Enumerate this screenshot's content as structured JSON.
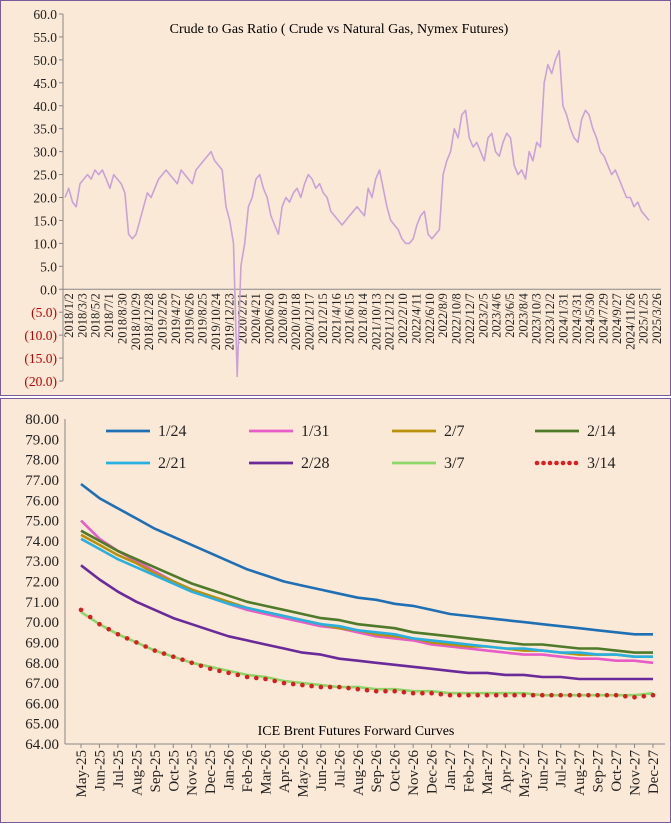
{
  "chart_data": [
    {
      "type": "line",
      "title": "Crude to Gas Ratio ( Crude vs Natural Gas, Nymex Futures)",
      "xlabel": "",
      "ylabel": "",
      "ylim": [
        -20,
        60
      ],
      "yticks": [
        "60.0",
        "55.0",
        "50.0",
        "45.0",
        "40.0",
        "35.0",
        "30.0",
        "25.0",
        "20.0",
        "15.0",
        "10.0",
        "5.0",
        "0.0",
        "(5.0)",
        "(10.0)",
        "(15.0)",
        "(20.0)"
      ],
      "ytick_values": [
        60,
        55,
        50,
        45,
        40,
        35,
        30,
        25,
        20,
        15,
        10,
        5,
        0,
        -5,
        -10,
        -15,
        -20
      ],
      "negative_tick_color": "#c00000",
      "line_color": "#c8a2d8",
      "grid": false,
      "x_ticks": [
        "2018/1/2",
        "2018/3/3",
        "2018/5/2",
        "2018/7/1",
        "2018/8/30",
        "2018/10/29",
        "2018/12/28",
        "2019/2/26",
        "2019/4/27",
        "2019/6/26",
        "2019/8/25",
        "2019/10/24",
        "2019/12/23",
        "2020/2/21",
        "2020/4/21",
        "2020/6/20",
        "2020/8/19",
        "2020/10/18",
        "2020/12/17",
        "2021/2/15",
        "2021/4/16",
        "2021/6/15",
        "2021/8/14",
        "2021/10/13",
        "2021/12/12",
        "2022/2/10",
        "2022/4/11",
        "2022/6/10",
        "2022/8/9",
        "2022/10/8",
        "2022/12/7",
        "2023/2/5",
        "2023/4/6",
        "2023/6/5",
        "2023/8/4",
        "2023/10/3",
        "2023/12/2",
        "2024/1/31",
        "2024/3/31",
        "2024/5/30",
        "2024/7/29",
        "2024/9/27",
        "2024/11/26",
        "2025/1/25",
        "2025/3/26"
      ],
      "series": [
        {
          "values": [
            20,
            22,
            19,
            18,
            23,
            24,
            25,
            24,
            26,
            25,
            26,
            24,
            22,
            25,
            24,
            23,
            21,
            12,
            11,
            12,
            15,
            18,
            21,
            20,
            22,
            24,
            25,
            26,
            25,
            24,
            23,
            26,
            25,
            24,
            23,
            26,
            27,
            28,
            29,
            30,
            28,
            27,
            26,
            18,
            15,
            10,
            -19,
            5,
            10,
            18,
            20,
            24,
            25,
            22,
            20,
            16,
            14,
            12,
            18,
            20,
            19,
            21,
            22,
            20,
            23,
            25,
            24,
            22,
            23,
            21,
            20,
            17,
            16,
            15,
            14,
            15,
            16,
            17,
            18,
            17,
            16,
            22,
            20,
            24,
            26,
            22,
            18,
            15,
            14,
            13,
            11,
            10,
            10,
            11,
            14,
            16,
            17,
            12,
            11,
            12,
            13,
            25,
            28,
            30,
            35,
            33,
            38,
            39,
            33,
            31,
            32,
            30,
            28,
            33,
            34,
            30,
            29,
            32,
            34,
            33,
            27,
            25,
            26,
            24,
            30,
            28,
            32,
            31,
            45,
            49,
            47,
            50,
            52,
            40,
            38,
            35,
            33,
            32,
            37,
            39,
            38,
            35,
            33,
            30,
            29,
            27,
            25,
            26,
            24,
            22,
            20,
            20,
            18,
            19,
            17,
            16,
            15
          ]
        }
      ]
    },
    {
      "type": "line",
      "title": "ICE Brent Futures Forward Curves",
      "xlabel": "",
      "ylabel": "",
      "ylim": [
        64,
        80
      ],
      "yticks": [
        "80.00",
        "79.00",
        "78.00",
        "77.00",
        "76.00",
        "75.00",
        "74.00",
        "73.00",
        "72.00",
        "71.00",
        "70.00",
        "69.00",
        "68.00",
        "67.00",
        "66.00",
        "65.00",
        "64.00"
      ],
      "ytick_values": [
        80,
        79,
        78,
        77,
        76,
        75,
        74,
        73,
        72,
        71,
        70,
        69,
        68,
        67,
        66,
        65,
        64
      ],
      "categories": [
        "May-25",
        "Jun-25",
        "Jul-25",
        "Aug-25",
        "Sep-25",
        "Oct-25",
        "Nov-25",
        "Dec-25",
        "Jan-26",
        "Feb-26",
        "Mar-26",
        "Apr-26",
        "May-26",
        "Jun-26",
        "Jul-26",
        "Aug-26",
        "Sep-26",
        "Oct-26",
        "Nov-26",
        "Dec-26",
        "Jan-27",
        "Feb-27",
        "Mar-27",
        "Apr-27",
        "May-27",
        "Jun-27",
        "Jul-27",
        "Aug-27",
        "Sep-27",
        "Oct-27",
        "Nov-27",
        "Dec-27"
      ],
      "grid": false,
      "legend_position": "top",
      "series": [
        {
          "name": "1/24",
          "color": "#1f6fb4",
          "dotted": false,
          "values": [
            76.8,
            76.1,
            75.6,
            75.1,
            74.6,
            74.2,
            73.8,
            73.4,
            73.0,
            72.6,
            72.3,
            72.0,
            71.8,
            71.6,
            71.4,
            71.2,
            71.1,
            70.9,
            70.8,
            70.6,
            70.4,
            70.3,
            70.2,
            70.1,
            70.0,
            69.9,
            69.8,
            69.7,
            69.6,
            69.5,
            69.4,
            69.4
          ]
        },
        {
          "name": "1/31",
          "color": "#e85cc8",
          "dotted": false,
          "values": [
            75.0,
            74.1,
            73.5,
            73.0,
            72.5,
            72.0,
            71.6,
            71.2,
            70.9,
            70.6,
            70.4,
            70.2,
            70.0,
            69.8,
            69.7,
            69.5,
            69.3,
            69.2,
            69.1,
            68.9,
            68.8,
            68.7,
            68.6,
            68.5,
            68.4,
            68.4,
            68.3,
            68.2,
            68.2,
            68.1,
            68.1,
            68.0
          ]
        },
        {
          "name": "2/7",
          "color": "#b8900a",
          "dotted": false,
          "values": [
            74.3,
            73.8,
            73.3,
            72.9,
            72.4,
            72.0,
            71.6,
            71.3,
            71.0,
            70.7,
            70.5,
            70.3,
            70.1,
            69.9,
            69.7,
            69.6,
            69.4,
            69.3,
            69.2,
            69.0,
            68.9,
            68.8,
            68.8,
            68.7,
            68.6,
            68.6,
            68.5,
            68.4,
            68.4,
            68.4,
            68.3,
            68.3
          ]
        },
        {
          "name": "2/14",
          "color": "#4e7a2a",
          "dotted": false,
          "values": [
            74.5,
            74.0,
            73.5,
            73.1,
            72.7,
            72.3,
            71.9,
            71.6,
            71.3,
            71.0,
            70.8,
            70.6,
            70.4,
            70.2,
            70.1,
            69.9,
            69.8,
            69.7,
            69.5,
            69.4,
            69.3,
            69.2,
            69.1,
            69.0,
            68.9,
            68.9,
            68.8,
            68.7,
            68.7,
            68.6,
            68.5,
            68.5
          ]
        },
        {
          "name": "2/21",
          "color": "#2ab0e0",
          "dotted": false,
          "values": [
            74.1,
            73.6,
            73.1,
            72.7,
            72.3,
            71.9,
            71.5,
            71.2,
            70.9,
            70.7,
            70.5,
            70.3,
            70.1,
            69.9,
            69.8,
            69.6,
            69.5,
            69.4,
            69.2,
            69.1,
            69.0,
            68.9,
            68.8,
            68.7,
            68.7,
            68.6,
            68.5,
            68.5,
            68.4,
            68.4,
            68.3,
            68.3
          ]
        },
        {
          "name": "2/28",
          "color": "#6a2a9a",
          "dotted": false,
          "values": [
            72.8,
            72.1,
            71.5,
            71.0,
            70.6,
            70.2,
            69.9,
            69.6,
            69.3,
            69.1,
            68.9,
            68.7,
            68.5,
            68.4,
            68.2,
            68.1,
            68.0,
            67.9,
            67.8,
            67.7,
            67.6,
            67.5,
            67.5,
            67.4,
            67.4,
            67.3,
            67.3,
            67.2,
            67.2,
            67.2,
            67.2,
            67.2
          ]
        },
        {
          "name": "3/7",
          "color": "#8cd66a",
          "dotted": false,
          "values": [
            70.5,
            69.9,
            69.4,
            69.0,
            68.6,
            68.3,
            68.0,
            67.8,
            67.6,
            67.4,
            67.3,
            67.1,
            67.0,
            66.9,
            66.8,
            66.8,
            66.7,
            66.7,
            66.6,
            66.6,
            66.5,
            66.5,
            66.5,
            66.5,
            66.5,
            66.4,
            66.4,
            66.4,
            66.4,
            66.4,
            66.4,
            66.5
          ]
        },
        {
          "name": "3/14",
          "color": "#d81e1e",
          "dotted": true,
          "values": [
            70.6,
            69.9,
            69.4,
            69.0,
            68.6,
            68.3,
            68.0,
            67.7,
            67.5,
            67.3,
            67.2,
            67.0,
            66.9,
            66.8,
            66.8,
            66.7,
            66.6,
            66.6,
            66.5,
            66.5,
            66.4,
            66.4,
            66.4,
            66.4,
            66.4,
            66.4,
            66.4,
            66.4,
            66.4,
            66.4,
            66.3,
            66.4
          ]
        }
      ]
    }
  ]
}
